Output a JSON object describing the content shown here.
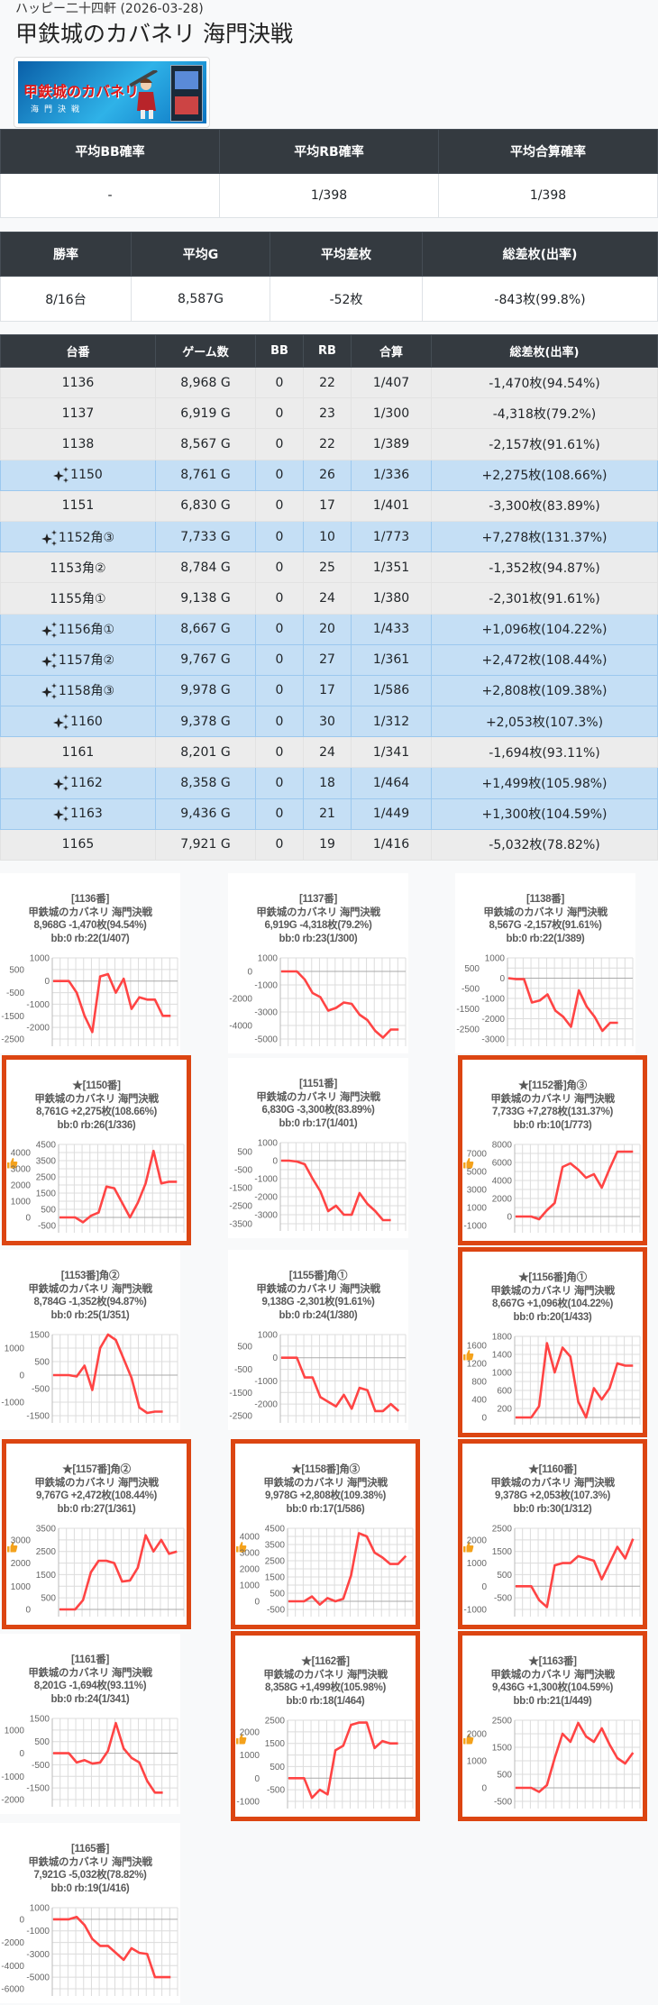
{
  "header": {
    "store": "ハッピー二十四軒 (2026-03-28)",
    "title": "甲鉄城のカバネリ 海門決戦"
  },
  "banner": {
    "logo_text": "甲鉄城のカバネリ",
    "logo_sub": "海門決戦"
  },
  "summary1": {
    "headers": [
      "平均BB確率",
      "平均RB確率",
      "平均合算確率"
    ],
    "values": [
      "-",
      "1/398",
      "1/398"
    ]
  },
  "summary2": {
    "headers": [
      "勝率",
      "平均G",
      "平均差枚",
      "総差枚(出率)"
    ],
    "values": [
      "8/16台",
      "8,587G",
      "-52枚",
      "-843枚(99.8%)"
    ]
  },
  "machines": {
    "headers": [
      "台番",
      "ゲーム数",
      "BB",
      "RB",
      "合算",
      "総差枚(出率)"
    ],
    "rows": [
      {
        "no": "1136",
        "highlight": false,
        "games": "8,968 G",
        "bb": "0",
        "rb": "22",
        "total": "1/407",
        "diff": "-1,470枚(94.54%)"
      },
      {
        "no": "1137",
        "highlight": false,
        "games": "6,919 G",
        "bb": "0",
        "rb": "23",
        "total": "1/300",
        "diff": "-4,318枚(79.2%)"
      },
      {
        "no": "1138",
        "highlight": false,
        "games": "8,567 G",
        "bb": "0",
        "rb": "22",
        "total": "1/389",
        "diff": "-2,157枚(91.61%)"
      },
      {
        "no": "1150",
        "highlight": true,
        "games": "8,761 G",
        "bb": "0",
        "rb": "26",
        "total": "1/336",
        "diff": "+2,275枚(108.66%)"
      },
      {
        "no": "1151",
        "highlight": false,
        "games": "6,830 G",
        "bb": "0",
        "rb": "17",
        "total": "1/401",
        "diff": "-3,300枚(83.89%)"
      },
      {
        "no": "1152角③",
        "highlight": true,
        "games": "7,733 G",
        "bb": "0",
        "rb": "10",
        "total": "1/773",
        "diff": "+7,278枚(131.37%)"
      },
      {
        "no": "1153角②",
        "highlight": false,
        "games": "8,784 G",
        "bb": "0",
        "rb": "25",
        "total": "1/351",
        "diff": "-1,352枚(94.87%)"
      },
      {
        "no": "1155角①",
        "highlight": false,
        "games": "9,138 G",
        "bb": "0",
        "rb": "24",
        "total": "1/380",
        "diff": "-2,301枚(91.61%)"
      },
      {
        "no": "1156角①",
        "highlight": true,
        "games": "8,667 G",
        "bb": "0",
        "rb": "20",
        "total": "1/433",
        "diff": "+1,096枚(104.22%)"
      },
      {
        "no": "1157角②",
        "highlight": true,
        "games": "9,767 G",
        "bb": "0",
        "rb": "27",
        "total": "1/361",
        "diff": "+2,472枚(108.44%)"
      },
      {
        "no": "1158角③",
        "highlight": true,
        "games": "9,978 G",
        "bb": "0",
        "rb": "17",
        "total": "1/586",
        "diff": "+2,808枚(109.38%)"
      },
      {
        "no": "1160",
        "highlight": true,
        "games": "9,378 G",
        "bb": "0",
        "rb": "30",
        "total": "1/312",
        "diff": "+2,053枚(107.3%)"
      },
      {
        "no": "1161",
        "highlight": false,
        "games": "8,201 G",
        "bb": "0",
        "rb": "24",
        "total": "1/341",
        "diff": "-1,694枚(93.11%)"
      },
      {
        "no": "1162",
        "highlight": true,
        "games": "8,358 G",
        "bb": "0",
        "rb": "18",
        "total": "1/464",
        "diff": "+1,499枚(105.98%)"
      },
      {
        "no": "1163",
        "highlight": true,
        "games": "9,436 G",
        "bb": "0",
        "rb": "21",
        "total": "1/449",
        "diff": "+1,300枚(104.59%)"
      },
      {
        "no": "1165",
        "highlight": false,
        "games": "7,921 G",
        "bb": "0",
        "rb": "19",
        "total": "1/416",
        "diff": "-5,032枚(78.82%)"
      }
    ]
  },
  "colors": {
    "header_bg": "#343a40",
    "row_bg": "#ececec",
    "row_highlight_bg": "#c5dff5",
    "card_border": "#dc4512",
    "line": "#ff4444"
  },
  "chart_data": [
    {
      "type": "line",
      "title": "[1136番]",
      "liked": false,
      "machine": "甲鉄城のカバネリ 海門決戦",
      "stats": "8,968G -1,470枚(94.54%)",
      "bonus": "bb:0 rb:22(1/407)",
      "y_ticks": [
        1000,
        500,
        0,
        -500,
        -1000,
        -1500,
        -2000,
        -2500
      ],
      "values": [
        0,
        0,
        0,
        -500,
        -1500,
        -2200,
        200,
        300,
        -500,
        100,
        -1200,
        -700,
        -800,
        -800,
        -1500,
        -1500
      ]
    },
    {
      "type": "line",
      "title": "[1137番]",
      "liked": false,
      "machine": "甲鉄城のカバネリ 海門決戦",
      "stats": "6,919G -4,318枚(79.2%)",
      "bonus": "bb:0 rb:23(1/300)",
      "y_ticks": [
        1000,
        0,
        -1000,
        -2000,
        -3000,
        -4000,
        -5000
      ],
      "values": [
        0,
        0,
        0,
        -600,
        -1600,
        -1900,
        -2900,
        -2700,
        -2300,
        -2400,
        -3200,
        -3600,
        -4400,
        -4900,
        -4300,
        -4300
      ]
    },
    {
      "type": "line",
      "title": "[1138番]",
      "liked": false,
      "machine": "甲鉄城のカバネリ 海門決戦",
      "stats": "8,567G -2,157枚(91.61%)",
      "bonus": "bb:0 rb:22(1/389)",
      "y_ticks": [
        1000,
        500,
        0,
        -500,
        -1000,
        -1500,
        -2000,
        -2500,
        -3000
      ],
      "values": [
        0,
        -50,
        -50,
        -1200,
        -1100,
        -800,
        -1600,
        -1900,
        -2400,
        -600,
        -1400,
        -1900,
        -2600,
        -2200,
        -2200
      ]
    },
    {
      "type": "line",
      "title": "★[1150番]",
      "liked": true,
      "machine": "甲鉄城のカバネリ 海門決戦",
      "stats": "8,761G +2,275枚(108.66%)",
      "bonus": "bb:0 rb:26(1/336)",
      "y_ticks": [
        4500,
        4000,
        3500,
        3000,
        2500,
        2000,
        1500,
        1000,
        500,
        0,
        -500
      ],
      "values": [
        0,
        0,
        0,
        -300,
        100,
        300,
        1900,
        1800,
        900,
        0,
        900,
        2100,
        4100,
        2100,
        2200,
        2200
      ]
    },
    {
      "type": "line",
      "title": "[1151番]",
      "liked": false,
      "machine": "甲鉄城のカバネリ 海門決戦",
      "stats": "6,830G -3,300枚(83.89%)",
      "bonus": "bb:0 rb:17(1/401)",
      "y_ticks": [
        1000,
        500,
        0,
        -500,
        -1000,
        -1500,
        -2000,
        -2500,
        -3000,
        -3500
      ],
      "values": [
        0,
        0,
        -50,
        -200,
        -1000,
        -1700,
        -2800,
        -2500,
        -3000,
        -3000,
        -1800,
        -2400,
        -2800,
        -3300,
        -3300
      ]
    },
    {
      "type": "line",
      "title": "★[1152番]角③",
      "liked": true,
      "machine": "甲鉄城のカバネリ 海門決戦",
      "stats": "7,733G +7,278枚(131.37%)",
      "bonus": "bb:0 rb:10(1/773)",
      "y_ticks": [
        8000,
        7000,
        6000,
        5000,
        4000,
        3000,
        2000,
        1000,
        0,
        -1000
      ],
      "values": [
        0,
        0,
        0,
        -300,
        700,
        1500,
        5500,
        5900,
        5200,
        4300,
        4700,
        3200,
        5300,
        7200,
        7200,
        7200
      ]
    },
    {
      "type": "line",
      "title": "[1153番]角②",
      "liked": false,
      "machine": "甲鉄城のカバネリ 海門決戦",
      "stats": "8,784G -1,352枚(94.87%)",
      "bonus": "bb:0 rb:25(1/351)",
      "y_ticks": [
        1500,
        1000,
        500,
        0,
        -500,
        -1000,
        -1500
      ],
      "values": [
        0,
        0,
        0,
        -50,
        350,
        -550,
        1000,
        1500,
        1300,
        600,
        -100,
        -1200,
        -1400,
        -1350,
        -1350
      ]
    },
    {
      "type": "line",
      "title": "[1155番]角①",
      "liked": false,
      "machine": "甲鉄城のカバネリ 海門決戦",
      "stats": "9,138G -2,301枚(91.61%)",
      "bonus": "bb:0 rb:24(1/380)",
      "y_ticks": [
        1000,
        500,
        0,
        -500,
        -1000,
        -1500,
        -2000,
        -2500
      ],
      "values": [
        0,
        0,
        0,
        -850,
        -850,
        -1700,
        -1900,
        -2100,
        -1600,
        -2200,
        -1300,
        -1400,
        -2300,
        -2300,
        -2000,
        -2300
      ]
    },
    {
      "type": "line",
      "title": "★[1156番]角①",
      "liked": true,
      "machine": "甲鉄城のカバネリ 海門決戦",
      "stats": "8,667G +1,096枚(104.22%)",
      "bonus": "bb:0 rb:20(1/433)",
      "y_ticks": [
        1800,
        1600,
        1400,
        1200,
        1000,
        800,
        600,
        400,
        200,
        0
      ],
      "values": [
        0,
        0,
        0,
        250,
        1650,
        1000,
        1550,
        1350,
        350,
        0,
        650,
        400,
        650,
        1200,
        1150,
        1150
      ]
    },
    {
      "type": "line",
      "title": "★[1157番]角②",
      "liked": true,
      "machine": "甲鉄城のカバネリ 海門決戦",
      "stats": "9,767G +2,472枚(108.44%)",
      "bonus": "bb:0 rb:27(1/361)",
      "y_ticks": [
        3500,
        3000,
        2500,
        2000,
        1500,
        1000,
        500,
        0
      ],
      "values": [
        0,
        0,
        0,
        400,
        1600,
        2100,
        2100,
        2000,
        1200,
        1250,
        1800,
        3200,
        2500,
        3000,
        2400,
        2500
      ]
    },
    {
      "type": "line",
      "title": "★[1158番]角③",
      "liked": true,
      "machine": "甲鉄城のカバネリ 海門決戦",
      "stats": "9,978G +2,808枚(109.38%)",
      "bonus": "bb:0 rb:17(1/586)",
      "y_ticks": [
        4500,
        4000,
        3500,
        3000,
        2500,
        2000,
        1500,
        1000,
        500,
        0,
        -500
      ],
      "values": [
        0,
        0,
        0,
        300,
        -200,
        200,
        0,
        150,
        1600,
        4200,
        4000,
        3000,
        2700,
        2300,
        2300,
        2800
      ]
    },
    {
      "type": "line",
      "title": "★[1160番]",
      "liked": true,
      "machine": "甲鉄城のカバネリ 海門決戦",
      "stats": "9,378G +2,053枚(107.3%)",
      "bonus": "bb:0 rb:30(1/312)",
      "y_ticks": [
        2500,
        2000,
        1500,
        1000,
        500,
        0,
        -500,
        -1000
      ],
      "values": [
        0,
        0,
        0,
        -600,
        -900,
        900,
        1000,
        1000,
        1300,
        1200,
        1100,
        300,
        1000,
        1700,
        1200,
        2050
      ]
    },
    {
      "type": "line",
      "title": "[1161番]",
      "liked": false,
      "machine": "甲鉄城のカバネリ 海門決戦",
      "stats": "8,201G -1,694枚(93.11%)",
      "bonus": "bb:0 rb:24(1/341)",
      "y_ticks": [
        1500,
        1000,
        500,
        0,
        -500,
        -1000,
        -1500,
        -2000
      ],
      "values": [
        0,
        0,
        0,
        -400,
        -300,
        -450,
        -400,
        100,
        1300,
        200,
        -200,
        -400,
        -1200,
        -1700,
        -1700
      ]
    },
    {
      "type": "line",
      "title": "★[1162番]",
      "liked": true,
      "machine": "甲鉄城のカバネリ 海門決戦",
      "stats": "8,358G +1,499枚(105.98%)",
      "bonus": "bb:0 rb:18(1/464)",
      "y_ticks": [
        2500,
        2000,
        1500,
        1000,
        500,
        0,
        -500,
        -1000
      ],
      "values": [
        0,
        0,
        0,
        -850,
        -500,
        -700,
        1200,
        1400,
        2300,
        2400,
        2400,
        1300,
        1600,
        1500,
        1500
      ]
    },
    {
      "type": "line",
      "title": "★[1163番]",
      "liked": true,
      "machine": "甲鉄城のカバネリ 海門決戦",
      "stats": "9,436G +1,300枚(104.59%)",
      "bonus": "bb:0 rb:21(1/449)",
      "y_ticks": [
        2500,
        2000,
        1500,
        1000,
        500,
        0,
        -500
      ],
      "values": [
        0,
        0,
        0,
        -150,
        100,
        1100,
        2000,
        1700,
        2400,
        1900,
        1700,
        2200,
        1600,
        1100,
        900,
        1300
      ]
    },
    {
      "type": "line",
      "title": "[1165番]",
      "liked": false,
      "machine": "甲鉄城のカバネリ 海門決戦",
      "stats": "7,921G -5,032枚(78.82%)",
      "bonus": "bb:0 rb:19(1/416)",
      "y_ticks": [
        1000,
        0,
        -1000,
        -2000,
        -3000,
        -4000,
        -5000,
        -6000
      ],
      "values": [
        0,
        0,
        0,
        200,
        -500,
        -1700,
        -2300,
        -2300,
        -2900,
        -3500,
        -2500,
        -2900,
        -3000,
        -5000,
        -5000,
        -5000
      ]
    }
  ]
}
